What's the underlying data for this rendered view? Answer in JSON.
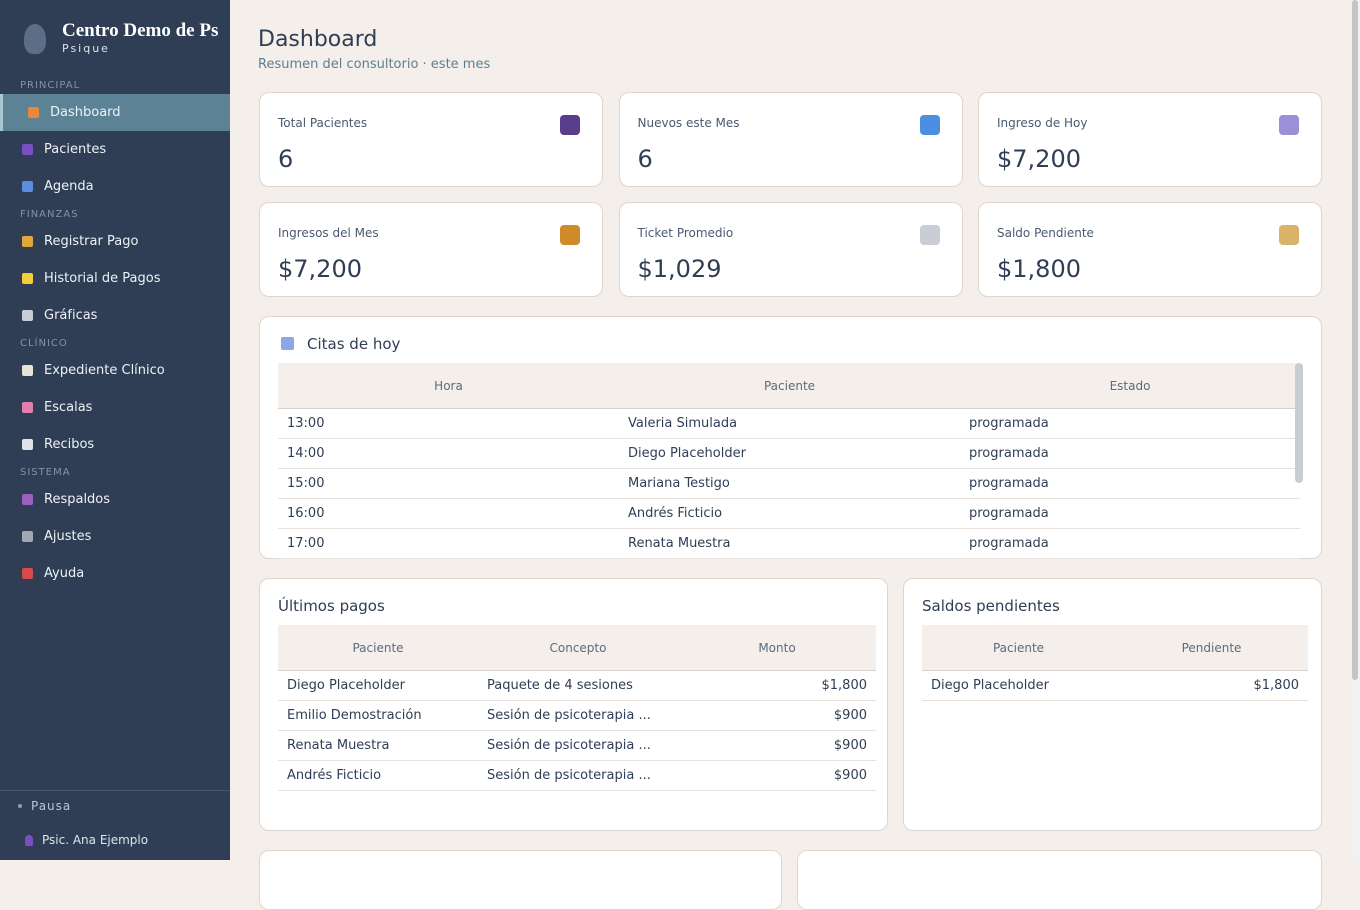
{
  "sidebar": {
    "brand": {
      "title": "Centro Demo de Ps",
      "subtitle": "Psique"
    },
    "sections": [
      {
        "label": "PRINCIPAL",
        "items": [
          "Dashboard",
          "Pacientes",
          "Agenda"
        ]
      },
      {
        "label": "FINANZAS",
        "items": [
          "Registrar Pago",
          "Historial de Pagos",
          "Gráficas"
        ]
      },
      {
        "label": "CLÍNICO",
        "items": [
          "Expediente Clínico",
          "Escalas",
          "Recibos"
        ]
      },
      {
        "label": "SISTEMA",
        "items": [
          "Respaldos",
          "Ajustes",
          "Ayuda"
        ]
      }
    ],
    "footer": {
      "status": "Pausa",
      "user": "Psic. Ana Ejemplo"
    }
  },
  "header": {
    "title": "Dashboard",
    "subtitle": "Resumen del consultorio · este mes"
  },
  "stats": [
    {
      "label": "Total Pacientes",
      "value": 6
    },
    {
      "label": "Nuevos este Mes",
      "value": 6
    },
    {
      "label": "Ingreso de Hoy",
      "value": "$7,200"
    },
    {
      "label": "Ingresos del Mes",
      "value": "$7,200"
    },
    {
      "label": "Ticket Promedio",
      "value": "$1,029"
    },
    {
      "label": "Saldo Pendiente",
      "value": "$1,800"
    }
  ],
  "appointments": {
    "title": "Citas de hoy",
    "columns": [
      "Hora",
      "Paciente",
      "Estado"
    ],
    "rows": [
      [
        "13:00",
        "Valeria Simulada",
        "programada"
      ],
      [
        "14:00",
        "Diego Placeholder",
        "programada"
      ],
      [
        "15:00",
        "Mariana Testigo",
        "programada"
      ],
      [
        "16:00",
        "Andrés Ficticio",
        "programada"
      ],
      [
        "17:00",
        "Renata Muestra",
        "programada"
      ]
    ]
  },
  "payments": {
    "title": "Últimos pagos",
    "columns": [
      "Paciente",
      "Concepto",
      "Monto"
    ],
    "rows": [
      [
        "Diego Placeholder",
        "Paquete de 4 sesiones",
        "$1,800"
      ],
      [
        "Emilio Demostración",
        "Sesión de psicoterapia ...",
        "$900"
      ],
      [
        "Renata Muestra",
        "Sesión de psicoterapia ...",
        "$900"
      ],
      [
        "Andrés Ficticio",
        "Sesión de psicoterapia ...",
        "$900"
      ]
    ]
  },
  "balances": {
    "title": "Saldos pendientes",
    "columns": [
      "Paciente",
      "Pendiente"
    ],
    "rows": [
      [
        "Diego Placeholder",
        "$1,800"
      ]
    ]
  }
}
